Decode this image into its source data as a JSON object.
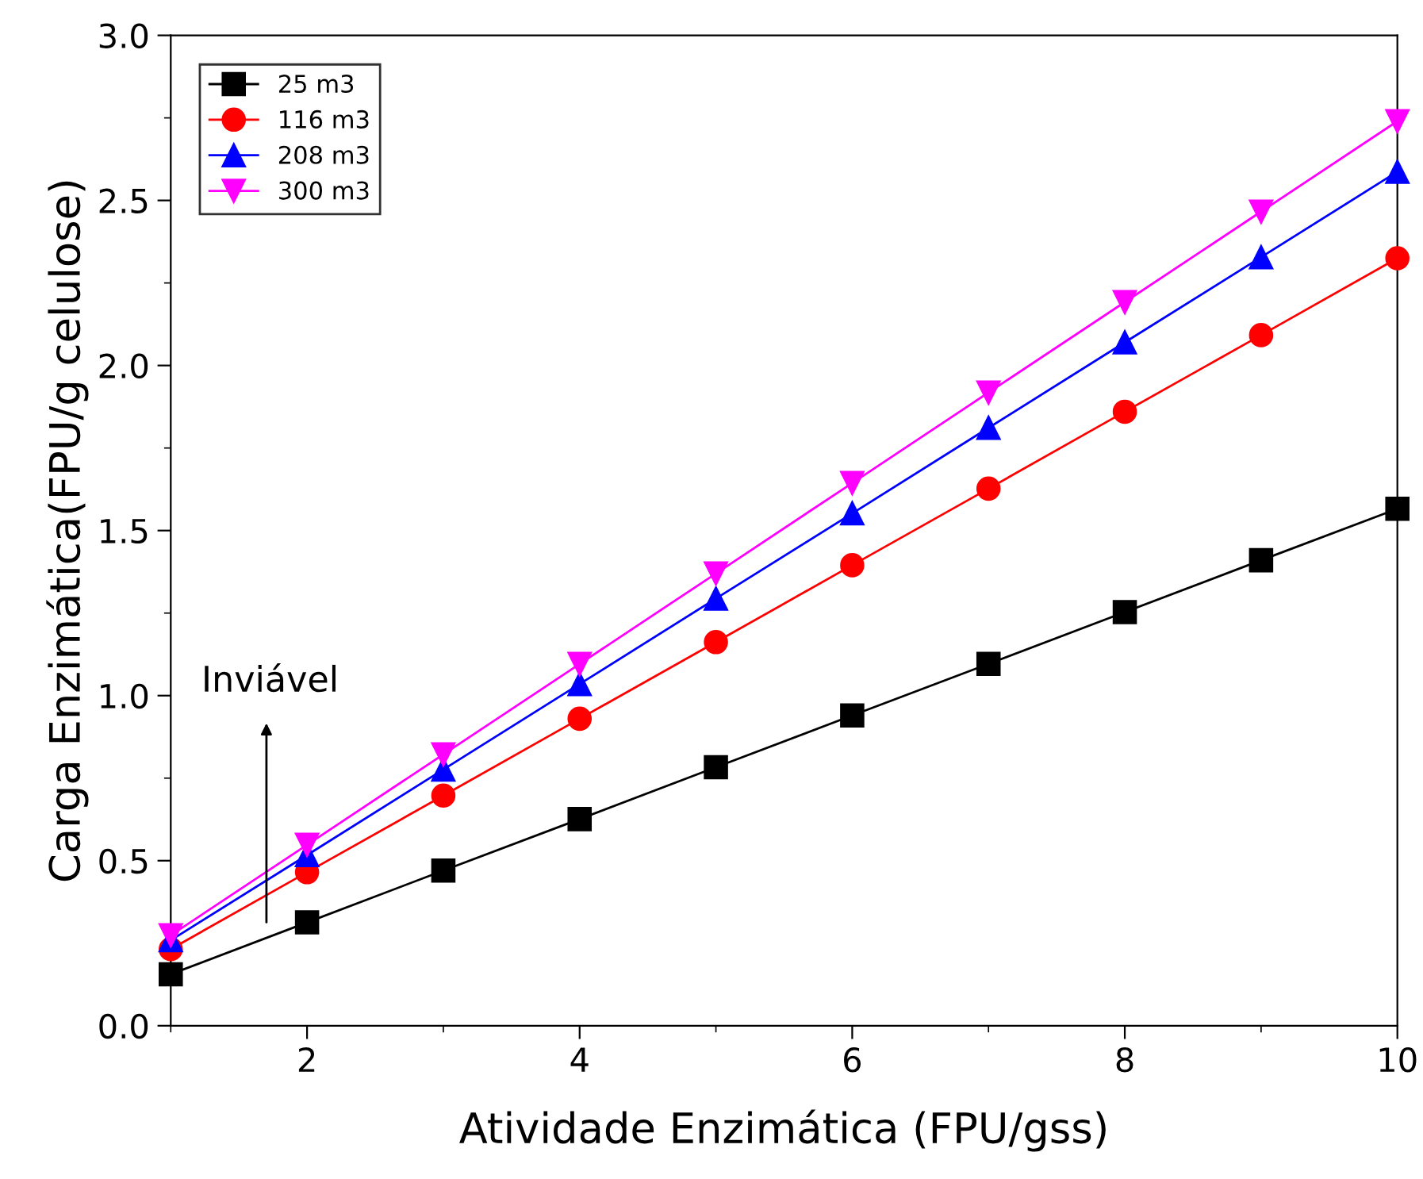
{
  "chart_data": {
    "type": "line",
    "xlabel": "Atividade Enzimática (FPU/gss)",
    "ylabel": "Carga Enzimática(FPU/g celulose)",
    "x": [
      1,
      2,
      3,
      4,
      5,
      6,
      7,
      8,
      9,
      10
    ],
    "series": [
      {
        "name": "25 m3",
        "color": "#000000",
        "marker": "square",
        "values": [
          0.156,
          0.313,
          0.47,
          0.626,
          0.783,
          0.94,
          1.096,
          1.253,
          1.41,
          1.566
        ]
      },
      {
        "name": "116 m3",
        "color": "#ff0000",
        "marker": "circle",
        "values": [
          0.232,
          0.465,
          0.697,
          0.93,
          1.162,
          1.395,
          1.627,
          1.86,
          2.092,
          2.325
        ]
      },
      {
        "name": "208 m3",
        "color": "#0000ff",
        "marker": "triangle",
        "values": [
          0.259,
          0.517,
          0.776,
          1.035,
          1.294,
          1.552,
          1.811,
          2.07,
          2.328,
          2.587
        ]
      },
      {
        "name": "300 m3",
        "color": "#ff00ff",
        "marker": "triangle_down",
        "values": [
          0.274,
          0.548,
          0.822,
          1.096,
          1.37,
          1.644,
          1.918,
          2.192,
          2.466,
          2.74
        ]
      }
    ],
    "xlim": [
      1,
      10
    ],
    "xticks": [
      2,
      4,
      6,
      8,
      10
    ],
    "ylim": [
      0,
      3
    ],
    "yticks": [
      {
        "value": 0,
        "label": "0.0"
      },
      0.5,
      {
        "value": 1,
        "label": "1.0"
      },
      1.5,
      {
        "value": 2,
        "label": "2.0"
      },
      2.5,
      {
        "value": 3,
        "label": "3.0"
      }
    ],
    "grid": false,
    "legend": "top left",
    "annotations": [
      "Inviável"
    ]
  }
}
